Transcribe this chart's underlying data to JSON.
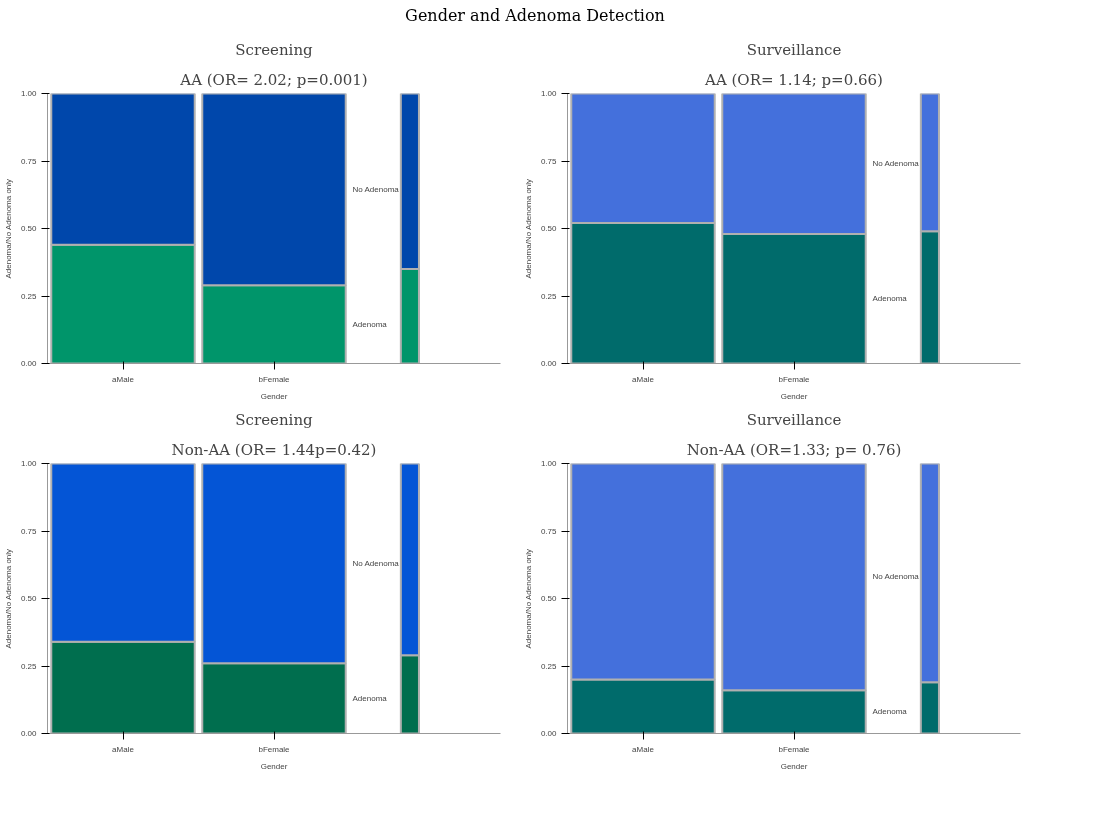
{
  "chart_data": [
    {
      "type": "bar",
      "stacked": true,
      "title": "Screening",
      "subtitle": "AA (OR= 2.02; p=0.001)",
      "annotations": [
        "Gender and Adenoma Detection"
      ],
      "xlabel": "Gender",
      "ylabel": "Adenoma/No Adenoma only",
      "categories": [
        "aMale",
        "bFemale",
        null
      ],
      "ylim": [
        0,
        1
      ],
      "yticks": [
        {
          "value": 0,
          "label": "0.00"
        },
        {
          "value": 0.25,
          "label": "0.25"
        },
        {
          "value": 0.5,
          "label": "0.50"
        },
        {
          "value": 0.75,
          "label": "0.75"
        },
        {
          "value": 1,
          "label": "1.00"
        }
      ],
      "grid": false,
      "series": [
        {
          "name": "Adenoma",
          "color": "#00956a",
          "values": [
            0.44,
            0.29,
            0.35
          ]
        },
        {
          "name": "No Adenoma",
          "color": "#0047ab",
          "values": [
            0.56,
            0.71,
            0.65
          ]
        }
      ]
    },
    {
      "type": "bar",
      "stacked": true,
      "title": "Surveillance",
      "subtitle": "AA (OR= 1.14; p=0.66)",
      "xlabel": "Gender",
      "ylabel": "Adenoma/No Adenoma only",
      "categories": [
        "aMale",
        "bFemale",
        null
      ],
      "ylim": [
        0,
        1
      ],
      "yticks": [
        {
          "value": 0,
          "label": "0.00"
        },
        {
          "value": 0.25,
          "label": "0.25"
        },
        {
          "value": 0.5,
          "label": "0.50"
        },
        {
          "value": 0.75,
          "label": "0.75"
        },
        {
          "value": 1,
          "label": "1.00"
        }
      ],
      "grid": false,
      "series": [
        {
          "name": "Adenoma",
          "color": "#006b6b",
          "values": [
            0.52,
            0.48,
            0.49
          ]
        },
        {
          "name": "No Adenoma",
          "color": "#4470dc",
          "values": [
            0.48,
            0.52,
            0.51
          ]
        }
      ]
    },
    {
      "type": "bar",
      "stacked": true,
      "title": "Screening",
      "subtitle": "Non-AA (OR= 1.44p=0.42)",
      "xlabel": "Gender",
      "ylabel": "Adenoma/No Adenoma only",
      "categories": [
        "aMale",
        "bFemale",
        null
      ],
      "ylim": [
        0,
        1
      ],
      "yticks": [
        {
          "value": 0,
          "label": "0.00"
        },
        {
          "value": 0.25,
          "label": "0.25"
        },
        {
          "value": 0.5,
          "label": "0.50"
        },
        {
          "value": 0.75,
          "label": "0.75"
        },
        {
          "value": 1,
          "label": "1.00"
        }
      ],
      "grid": false,
      "series": [
        {
          "name": "Adenoma",
          "color": "#006e4e",
          "values": [
            0.34,
            0.26,
            0.29
          ]
        },
        {
          "name": "No Adenoma",
          "color": "#0455d6",
          "values": [
            0.66,
            0.74,
            0.71
          ]
        }
      ]
    },
    {
      "type": "bar",
      "stacked": true,
      "title": "Surveillance",
      "subtitle": "Non-AA (OR=1.33; p= 0.76)",
      "xlabel": "Gender",
      "ylabel": "Adenoma/No Adenoma only",
      "categories": [
        "aMale",
        "bFemale",
        null
      ],
      "ylim": [
        0,
        1
      ],
      "yticks": [
        {
          "value": 0,
          "label": "0.00"
        },
        {
          "value": 0.25,
          "label": "0.25"
        },
        {
          "value": 0.5,
          "label": "0.50"
        },
        {
          "value": 0.75,
          "label": "0.75"
        },
        {
          "value": 1,
          "label": "1.00"
        }
      ],
      "grid": false,
      "series": [
        {
          "name": "Adenoma",
          "color": "#006b6b",
          "values": [
            0.2,
            0.16,
            0.19
          ]
        },
        {
          "name": "No Adenoma",
          "color": "#4470dc",
          "values": [
            0.8,
            0.84,
            0.81
          ]
        }
      ]
    }
  ]
}
